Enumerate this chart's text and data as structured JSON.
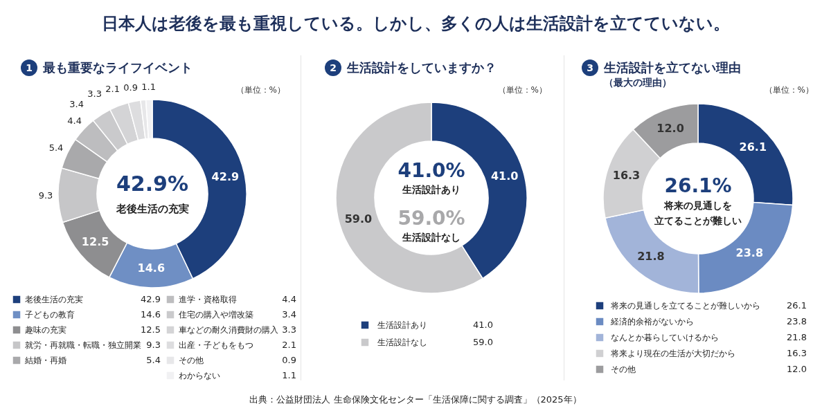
{
  "chart_data": [
    {
      "type": "donut",
      "title": "1 最も重要なライフイベント",
      "categories": [
        "老後生活の充実",
        "子どもの教育",
        "趣味の充実",
        "就労・再就職・転職・独立開業",
        "結婚・再婚",
        "進学・資格取得",
        "住宅の購入や増改築",
        "車などの耐久消費財の購入",
        "出産・子どもをもつ",
        "その他",
        "わからない"
      ],
      "values": [
        42.9,
        14.6,
        12.5,
        9.3,
        5.4,
        4.4,
        3.4,
        3.3,
        2.1,
        0.9,
        1.1
      ],
      "colors": [
        "#1d3f7c",
        "#6f8fc4",
        "#8e8e90",
        "#c6c6c8",
        "#a9a9ab",
        "#bdbdbf",
        "#cacacc",
        "#d4d4d6",
        "#dddddf",
        "#e7e7e9",
        "#f1f1f3"
      ],
      "value_labels": [
        "42.9",
        "14.6",
        "12.5",
        "9.3",
        "5.4",
        "4.4",
        "3.4",
        "3.3",
        "2.1",
        "0.9",
        "1.1"
      ],
      "legend": "bottom",
      "annotations": [
        "日本人は老後を最も重視している。しかし、多くの人は生活設計を立てていない。",
        "（単位：%）",
        "42.9%",
        "老後生活の充実"
      ]
    },
    {
      "type": "donut",
      "title": "2 生活設計をしていますか？",
      "categories": [
        "生活設計あり",
        "生活設計なし"
      ],
      "values": [
        41.0,
        59.0
      ],
      "colors": [
        "#1d3f7c",
        "#c9c9cb"
      ],
      "value_labels": [
        "41.0",
        "59.0"
      ],
      "legend": "bottom",
      "annotations": [
        "（単位：%）",
        "41.0%",
        "生活設計あり",
        "59.0%",
        "生活設計なし",
        "出典：公益財団法人 生命保険文化センター「生活保障に関する調査」（2025年）"
      ]
    },
    {
      "type": "donut",
      "title": "3 生活設計を立てない理由",
      "subtitle": "（最大の理由）",
      "categories": [
        "将来の見通しを立てることが難しいから",
        "経済的余裕がないから",
        "なんとか暮らしていけるから",
        "将来より現在の生活が大切だから",
        "その他"
      ],
      "values": [
        26.1,
        23.8,
        21.8,
        16.3,
        12.0
      ],
      "colors": [
        "#1d3f7c",
        "#6b8bc2",
        "#a2b4d9",
        "#d0d0d2",
        "#9c9c9e"
      ],
      "value_labels": [
        "26.1",
        "23.8",
        "21.8",
        "16.3",
        "12.0"
      ],
      "legend": "bottom",
      "annotations": [
        "（単位：%）",
        "26.1%",
        "将来の見通しを",
        "立てることが難しい"
      ]
    }
  ]
}
